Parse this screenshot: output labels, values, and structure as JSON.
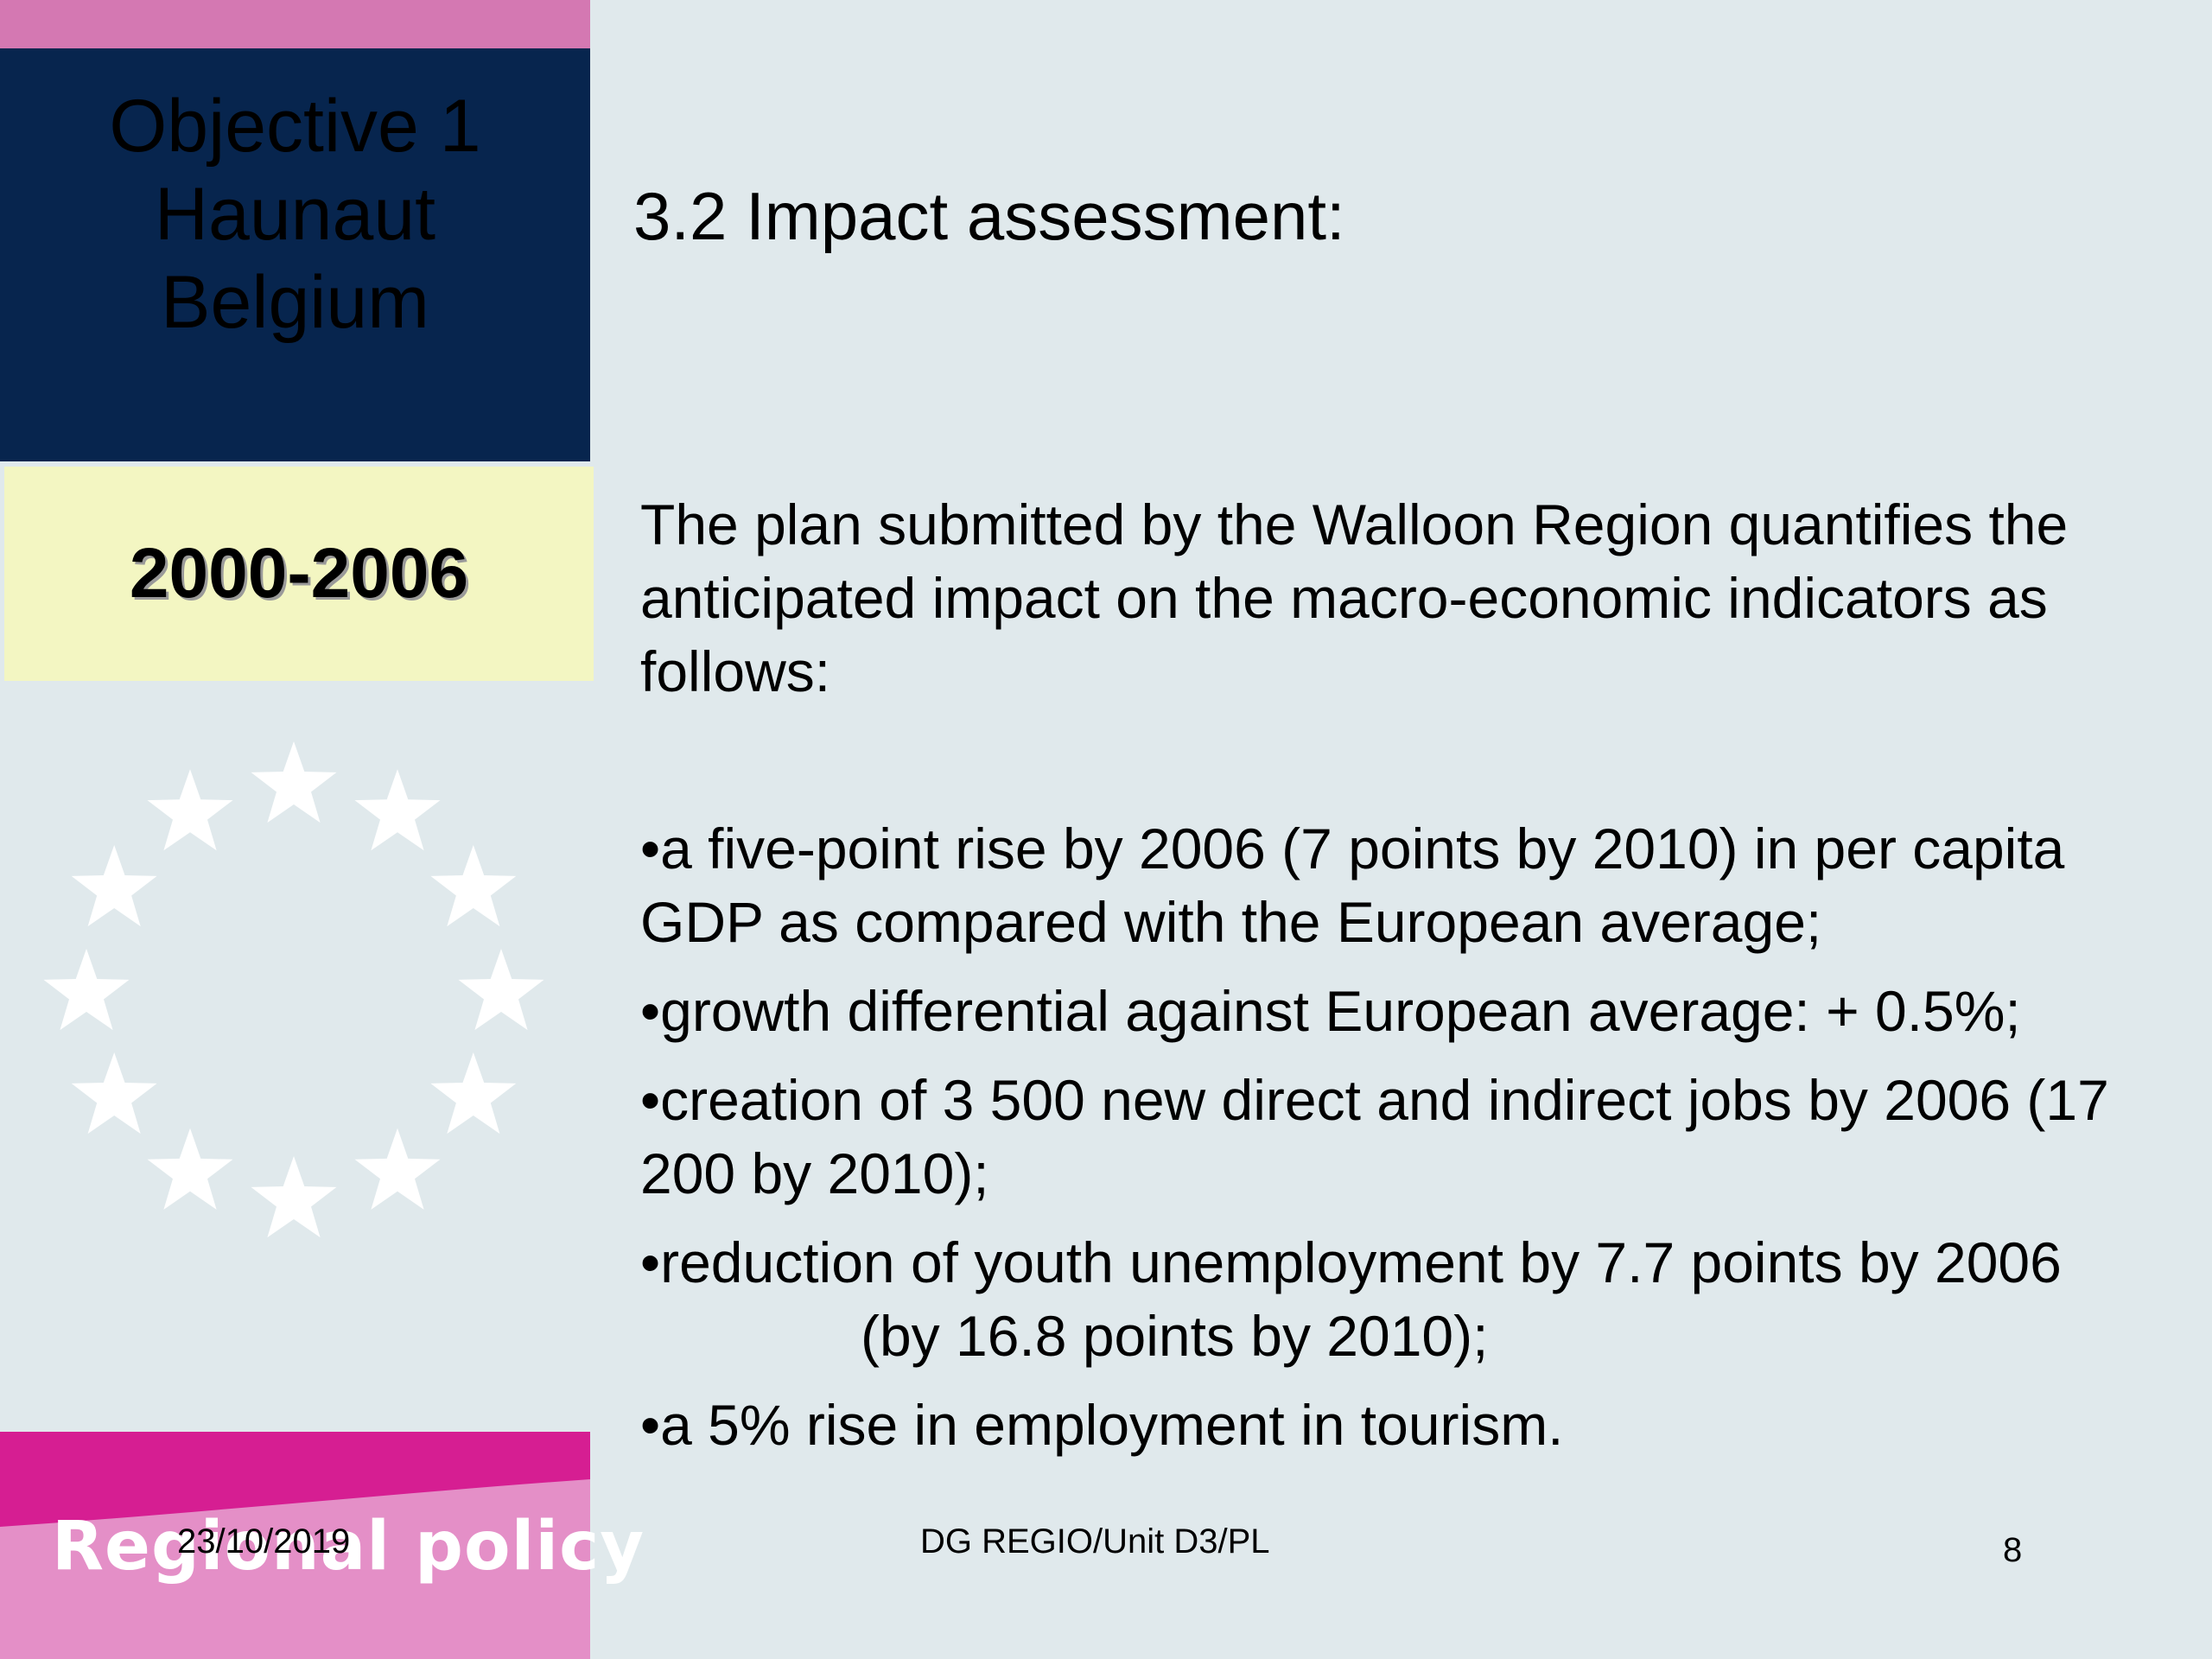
{
  "sidebar": {
    "title_lines": [
      "Objective 1",
      "Haunaut",
      "Belgium"
    ],
    "period": "2000-2006",
    "brand": "Regional policy"
  },
  "main": {
    "heading": "3.2 Impact assessment:",
    "intro": "The plan submitted by the Walloon Region quantifies the anticipated impact on the macro-economic indicators as follows:",
    "bullets": [
      "•a five-point rise by 2006 (7 points by 2010) in per capita GDP as compared with the European average;",
      "•growth differential against European average:  + 0.5%;",
      "•creation of  3 500 new direct and indirect jobs by 2006 (17 200 by 2010);",
      "•reduction of youth unemployment by 7.7 points by 2006",
      "(by 16.8 points by 2010);",
      "•a 5% rise in employment in tourism."
    ]
  },
  "footer": {
    "date": "23/10/2019",
    "center": "DG REGIO/Unit D3/PL",
    "page_number": "8"
  },
  "colors": {
    "background": "#e0e9ec",
    "title_box": "#07254e",
    "period_box": "#f3f6c2",
    "pink_accent": "#d478b2",
    "magenta": "#d61e92",
    "light_pink": "#e48fc7"
  },
  "icons": [
    "eu-stars-circle-icon"
  ]
}
